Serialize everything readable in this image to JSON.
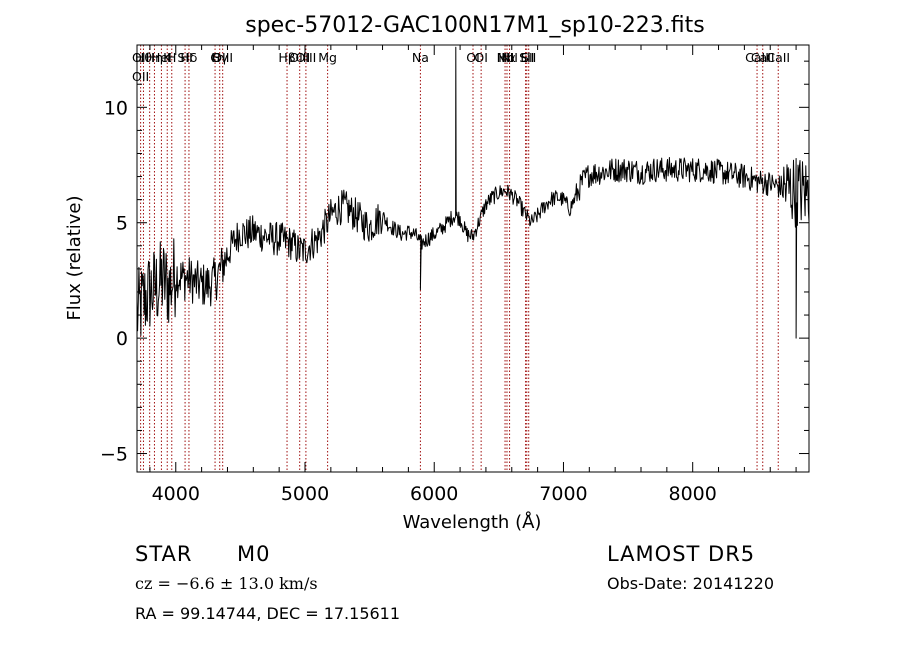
{
  "chart_data": {
    "type": "line",
    "title": "spec-57012-GAC100N17M1_sp10-223.fits",
    "xlabel": "Wavelength (Å)",
    "ylabel": "Flux (relative)",
    "xlim": [
      3700,
      8900
    ],
    "ylim": [
      -5.8,
      12.7
    ],
    "x_ticks": [
      4000,
      5000,
      6000,
      7000,
      8000
    ],
    "y_ticks": [
      -5,
      0,
      5,
      10
    ],
    "grid": false,
    "line_color": "#000000",
    "marker_color": "#a01010",
    "spectrum_knots": [
      [
        3700,
        1.0
      ],
      [
        3750,
        1.6
      ],
      [
        3800,
        2.0
      ],
      [
        3850,
        2.2
      ],
      [
        3900,
        2.5
      ],
      [
        3950,
        2.2
      ],
      [
        4000,
        2.8
      ],
      [
        4050,
        2.6
      ],
      [
        4100,
        2.6
      ],
      [
        4150,
        2.4
      ],
      [
        4200,
        2.3
      ],
      [
        4250,
        2.3
      ],
      [
        4300,
        2.5
      ],
      [
        4350,
        3.0
      ],
      [
        4400,
        3.6
      ],
      [
        4450,
        4.2
      ],
      [
        4500,
        4.6
      ],
      [
        4550,
        4.5
      ],
      [
        4600,
        4.6
      ],
      [
        4650,
        4.5
      ],
      [
        4700,
        4.4
      ],
      [
        4750,
        4.3
      ],
      [
        4800,
        4.3
      ],
      [
        4850,
        4.2
      ],
      [
        4900,
        4.1
      ],
      [
        4950,
        3.8
      ],
      [
        5000,
        3.8
      ],
      [
        5050,
        4.1
      ],
      [
        5100,
        4.3
      ],
      [
        5150,
        4.8
      ],
      [
        5200,
        5.3
      ],
      [
        5250,
        5.6
      ],
      [
        5300,
        5.7
      ],
      [
        5350,
        5.5
      ],
      [
        5400,
        5.3
      ],
      [
        5450,
        5.0
      ],
      [
        5500,
        4.8
      ],
      [
        5550,
        5.1
      ],
      [
        5600,
        5.3
      ],
      [
        5650,
        4.9
      ],
      [
        5700,
        4.7
      ],
      [
        5750,
        4.5
      ],
      [
        5800,
        4.6
      ],
      [
        5850,
        4.5
      ],
      [
        5900,
        4.1
      ],
      [
        5950,
        4.3
      ],
      [
        6000,
        4.5
      ],
      [
        6050,
        4.7
      ],
      [
        6100,
        5.0
      ],
      [
        6150,
        5.3
      ],
      [
        6200,
        5.2
      ],
      [
        6250,
        4.5
      ],
      [
        6300,
        4.4
      ],
      [
        6350,
        5.1
      ],
      [
        6400,
        5.8
      ],
      [
        6450,
        6.1
      ],
      [
        6500,
        6.3
      ],
      [
        6550,
        6.4
      ],
      [
        6600,
        6.2
      ],
      [
        6650,
        5.9
      ],
      [
        6700,
        5.4
      ],
      [
        6750,
        5.0
      ],
      [
        6800,
        5.3
      ],
      [
        6850,
        5.7
      ],
      [
        6900,
        6.0
      ],
      [
        6950,
        6.1
      ],
      [
        7000,
        6.0
      ],
      [
        7050,
        5.6
      ],
      [
        7100,
        6.2
      ],
      [
        7150,
        6.8
      ],
      [
        7200,
        7.1
      ],
      [
        7300,
        7.2
      ],
      [
        7400,
        7.3
      ],
      [
        7500,
        7.3
      ],
      [
        7600,
        7.2
      ],
      [
        7700,
        7.3
      ],
      [
        7800,
        7.3
      ],
      [
        7900,
        7.3
      ],
      [
        8000,
        7.3
      ],
      [
        8100,
        7.3
      ],
      [
        8200,
        7.2
      ],
      [
        8300,
        7.1
      ],
      [
        8400,
        7.0
      ],
      [
        8500,
        6.8
      ],
      [
        8600,
        6.7
      ],
      [
        8700,
        6.5
      ],
      [
        8800,
        6.4
      ],
      [
        8900,
        6.3
      ]
    ],
    "spectrum_features": [
      {
        "wavelength": 6167,
        "peak": 12.6
      },
      {
        "wavelength": 5893,
        "peak": 2.1
      },
      {
        "wavelength": 8800,
        "peak": 0.0
      }
    ],
    "line_markers": [
      {
        "wavelength": 3728,
        "labels": [
          "OII",
          "OII"
        ]
      },
      {
        "wavelength": 3750,
        "labels": [
          "Hθ"
        ]
      },
      {
        "wavelength": 3798,
        "labels": []
      },
      {
        "wavelength": 3835,
        "labels": [
          "Hη"
        ]
      },
      {
        "wavelength": 3889,
        "labels": [
          "HeI"
        ]
      },
      {
        "wavelength": 3934,
        "labels": [
          "K"
        ]
      },
      {
        "wavelength": 3969,
        "labels": [
          "H"
        ]
      },
      {
        "wavelength": 4072,
        "labels": [
          "SII"
        ]
      },
      {
        "wavelength": 4102,
        "labels": [
          "Hδ"
        ]
      },
      {
        "wavelength": 4340,
        "labels": [
          "Hγ"
        ]
      },
      {
        "wavelength": 4304,
        "labels": [
          "G"
        ]
      },
      {
        "wavelength": 4363,
        "labels": [
          "OIII"
        ]
      },
      {
        "wavelength": 4861,
        "labels": [
          "Hβ"
        ]
      },
      {
        "wavelength": 4959,
        "labels": [
          "OIII"
        ]
      },
      {
        "wavelength": 5007,
        "labels": [
          "OIII"
        ]
      },
      {
        "wavelength": 5175,
        "labels": [
          "Mg"
        ]
      },
      {
        "wavelength": 5893,
        "labels": [
          "Na"
        ]
      },
      {
        "wavelength": 6300,
        "labels": [
          "OI"
        ]
      },
      {
        "wavelength": 6363,
        "labels": [
          "OI"
        ]
      },
      {
        "wavelength": 6548,
        "labels": [
          "NII"
        ]
      },
      {
        "wavelength": 6563,
        "labels": [
          "Hα"
        ]
      },
      {
        "wavelength": 6583,
        "labels": [
          "NII"
        ]
      },
      {
        "wavelength": 6707,
        "labels": [
          "Li"
        ]
      },
      {
        "wavelength": 6716,
        "labels": [
          "SII"
        ]
      },
      {
        "wavelength": 6731,
        "labels": [
          "SII"
        ]
      },
      {
        "wavelength": 8498,
        "labels": [
          "CaII"
        ]
      },
      {
        "wavelength": 8542,
        "labels": [
          "CaII"
        ]
      },
      {
        "wavelength": 8662,
        "labels": [
          "CaII"
        ]
      }
    ]
  },
  "info": {
    "object_class": "STAR",
    "subclass": "M0",
    "survey": "LAMOST DR5",
    "redshift": "cz = −6.6 ± 13.0 km/s",
    "obs_date": "Obs-Date: 20141220",
    "coords": "RA =  99.14744, DEC =  17.15611"
  }
}
